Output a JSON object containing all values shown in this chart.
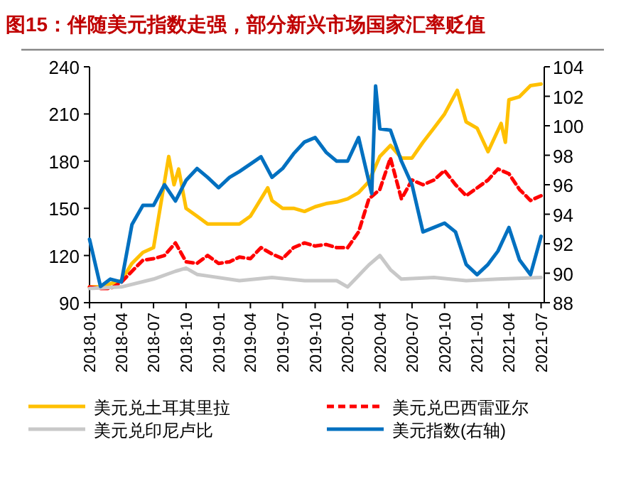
{
  "chart_data": {
    "type": "line",
    "title": "图15：伴随美元指数走强，部分新兴市场国家汇率贬值",
    "xlim": [
      "2018-01-01",
      "2021-07-10"
    ],
    "xticks": [
      "2018-01",
      "2018-04",
      "2018-07",
      "2018-10",
      "2019-01",
      "2019-04",
      "2019-07",
      "2019-10",
      "2020-01",
      "2020-04",
      "2020-07",
      "2020-10",
      "2021-01",
      "2021-04",
      "2021-07"
    ],
    "ylim": [
      90,
      240
    ],
    "yticks": [
      90,
      120,
      150,
      180,
      210,
      240
    ],
    "y2lim": [
      88,
      104
    ],
    "y2ticks": [
      88,
      90,
      92,
      94,
      96,
      98,
      100,
      102,
      104
    ],
    "legend": "bottom",
    "grid": false,
    "series": [
      {
        "name": "美元兑土耳其里拉",
        "color": "#ffc000",
        "line_style": "solid",
        "x": [
          "2018-01",
          "2018-02",
          "2018-03",
          "2018-04",
          "2018-05",
          "2018-06",
          "2018-07",
          "2018-08-13",
          "2018-08-28",
          "2018-09-10",
          "2018-10",
          "2018-11",
          "2018-12",
          "2019-01",
          "2019-02",
          "2019-03",
          "2019-04",
          "2019-05-20",
          "2019-06",
          "2019-07",
          "2019-08",
          "2019-09",
          "2019-10",
          "2019-11",
          "2019-12",
          "2020-01",
          "2020-02",
          "2020-03",
          "2020-04",
          "2020-05",
          "2020-06",
          "2020-07",
          "2020-08",
          "2020-09",
          "2020-10",
          "2020-11-06",
          "2020-12",
          "2021-01",
          "2021-02",
          "2021-03-10",
          "2021-03-22",
          "2021-04",
          "2021-05",
          "2021-06",
          "2021-07"
        ],
        "values": [
          100,
          100,
          102,
          104,
          115,
          122,
          125,
          183,
          165,
          175,
          150,
          145,
          140,
          140,
          140,
          140,
          145,
          163,
          155,
          150,
          150,
          148,
          151,
          153,
          154,
          156,
          160,
          167,
          183,
          190,
          182,
          182,
          192,
          201,
          210,
          225,
          205,
          201,
          186,
          204,
          192,
          219,
          221,
          228,
          229
        ]
      },
      {
        "name": "美元兑巴西雷亚尔",
        "color": "#ff0000",
        "line_style": "dashed",
        "x": [
          "2018-01",
          "2018-02",
          "2018-03",
          "2018-04",
          "2018-05",
          "2018-06",
          "2018-07",
          "2018-08",
          "2018-09",
          "2018-10",
          "2018-11",
          "2018-12",
          "2019-01",
          "2019-02",
          "2019-03",
          "2019-04",
          "2019-05",
          "2019-06",
          "2019-07",
          "2019-08",
          "2019-09",
          "2019-10",
          "2019-11",
          "2019-12",
          "2020-01",
          "2020-02",
          "2020-03",
          "2020-04",
          "2020-05",
          "2020-06",
          "2020-07",
          "2020-08",
          "2020-09",
          "2020-10",
          "2020-11",
          "2020-12",
          "2021-01",
          "2021-02",
          "2021-03",
          "2021-04",
          "2021-05",
          "2021-06",
          "2021-07"
        ],
        "values": [
          100,
          99,
          99,
          103,
          110,
          117,
          118,
          120,
          128,
          116,
          115,
          120,
          115,
          116,
          119,
          118,
          125,
          121,
          118,
          125,
          128,
          126,
          127,
          125,
          125,
          135,
          156,
          162,
          182,
          156,
          168,
          165,
          168,
          174,
          165,
          158,
          163,
          168,
          175,
          172,
          162,
          155,
          158
        ]
      },
      {
        "name": "美元兑印尼卢比",
        "color": "#c8c8c8",
        "line_style": "solid",
        "x": [
          "2018-01",
          "2018-04",
          "2018-07",
          "2018-09",
          "2018-10",
          "2018-11",
          "2018-12",
          "2019-03",
          "2019-06",
          "2019-09",
          "2019-12",
          "2020-01",
          "2020-03",
          "2020-04",
          "2020-05",
          "2020-06",
          "2020-09",
          "2020-12",
          "2021-03",
          "2021-07"
        ],
        "values": [
          99,
          100,
          105,
          110,
          112,
          108,
          107,
          104,
          106,
          104,
          104,
          100,
          114,
          120,
          111,
          105,
          106,
          104,
          105,
          106
        ]
      },
      {
        "name": "美元指数(右轴)",
        "color": "#0070c0",
        "line_style": "solid",
        "axis": "y2",
        "x": [
          "2018-01",
          "2018-02",
          "2018-03",
          "2018-04",
          "2018-05",
          "2018-06",
          "2018-07",
          "2018-08",
          "2018-09",
          "2018-10",
          "2018-11",
          "2018-12",
          "2019-01",
          "2019-02",
          "2019-03",
          "2019-04",
          "2019-05",
          "2019-06",
          "2019-07",
          "2019-08",
          "2019-09",
          "2019-10",
          "2019-11",
          "2019-12",
          "2020-01",
          "2020-02",
          "2020-03-09",
          "2020-03-20",
          "2020-04",
          "2020-05",
          "2020-06",
          "2020-07",
          "2020-08",
          "2020-09",
          "2020-10",
          "2020-11",
          "2020-12",
          "2021-01",
          "2021-02",
          "2021-03",
          "2021-04",
          "2021-05",
          "2021-06",
          "2021-07"
        ],
        "values": [
          92.3,
          89.1,
          89.6,
          89.4,
          93.3,
          94.6,
          94.6,
          96.0,
          94.9,
          96.3,
          97.1,
          96.5,
          95.8,
          96.5,
          96.9,
          97.4,
          97.9,
          96.5,
          97.1,
          98.1,
          98.9,
          99.2,
          98.2,
          97.6,
          97.6,
          99.2,
          95.4,
          102.7,
          99.8,
          99.7,
          97.6,
          96.0,
          92.8,
          93.1,
          93.4,
          92.8,
          90.6,
          89.9,
          90.6,
          91.5,
          93.1,
          90.9,
          89.9,
          92.5
        ]
      }
    ]
  }
}
